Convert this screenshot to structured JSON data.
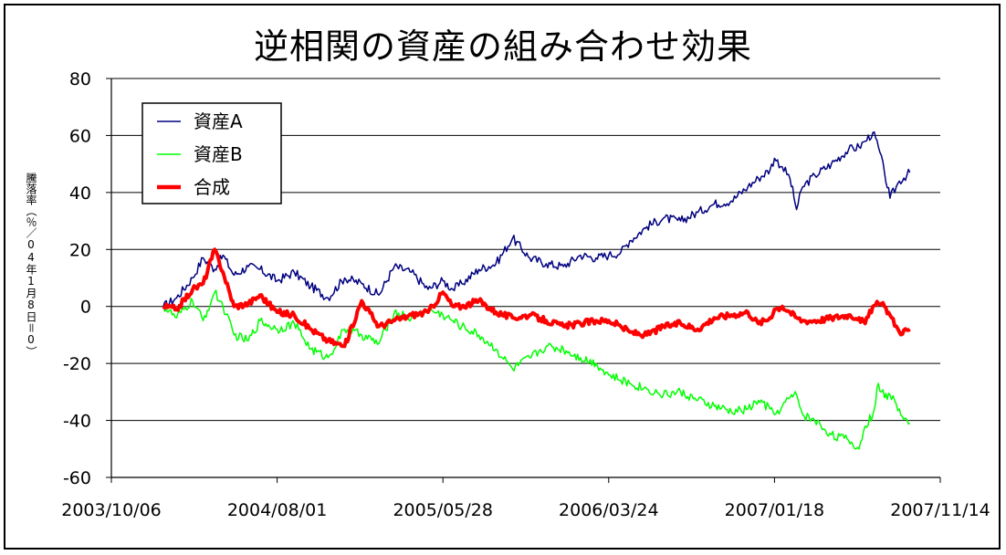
{
  "chart_data": {
    "type": "line",
    "title": "逆相関の資産の組み合わせ効果",
    "ylabel": "騰落率（％／04年1月8日＝0）",
    "ylim": [
      -60,
      80
    ],
    "yticks": [
      80,
      60,
      40,
      20,
      0,
      -20,
      -40,
      -60
    ],
    "xlim": [
      "2003-10-06",
      "2007-11-14"
    ],
    "xticks": [
      "2003/10/06",
      "2004/08/01",
      "2005/05/28",
      "2006/03/24",
      "2007/01/18",
      "2007/11/14"
    ],
    "grid": true,
    "legend_position": "top-left",
    "series": [
      {
        "name": "資産A",
        "color": "#000080",
        "width": 1.5,
        "dates": [
          "2004-01-08",
          "2004-02-01",
          "2004-03-01",
          "2004-03-20",
          "2004-04-10",
          "2004-04-25",
          "2004-05-15",
          "2004-06-10",
          "2004-07-01",
          "2004-08-01",
          "2004-09-01",
          "2004-10-01",
          "2004-11-01",
          "2004-12-01",
          "2005-01-01",
          "2005-02-01",
          "2005-03-01",
          "2005-04-01",
          "2005-05-01",
          "2005-05-28",
          "2005-06-15",
          "2005-07-01",
          "2005-08-01",
          "2005-09-01",
          "2005-10-01",
          "2005-11-01",
          "2005-12-01",
          "2006-01-01",
          "2006-02-01",
          "2006-03-01",
          "2006-03-24",
          "2006-04-15",
          "2006-05-01",
          "2006-06-01",
          "2006-07-01",
          "2006-08-01",
          "2006-09-01",
          "2006-10-01",
          "2006-11-01",
          "2006-12-01",
          "2006-12-20",
          "2007-01-10",
          "2007-01-18",
          "2007-02-01",
          "2007-02-15",
          "2007-02-27",
          "2007-03-10",
          "2007-04-01",
          "2007-05-01",
          "2007-06-01",
          "2007-06-20",
          "2007-07-01",
          "2007-07-15",
          "2007-07-25",
          "2007-08-05",
          "2007-08-15",
          "2007-09-01",
          "2007-09-20"
        ],
        "values": [
          0,
          3,
          10,
          17,
          13,
          18,
          11,
          14,
          13,
          9,
          12,
          7,
          3,
          10,
          8,
          4,
          14,
          12,
          6,
          9,
          6,
          8,
          13,
          15,
          24,
          17,
          15,
          14,
          18,
          17,
          18,
          19,
          23,
          28,
          31,
          30,
          33,
          36,
          37,
          42,
          45,
          48,
          52,
          49,
          45,
          34,
          42,
          46,
          50,
          55,
          56,
          58,
          61,
          56,
          47,
          38,
          44,
          47
        ]
      },
      {
        "name": "資産B",
        "color": "#00ff00",
        "width": 1.5,
        "dates": [
          "2004-01-08",
          "2004-02-01",
          "2004-03-01",
          "2004-03-20",
          "2004-04-10",
          "2004-04-25",
          "2004-05-15",
          "2004-06-10",
          "2004-07-01",
          "2004-08-01",
          "2004-09-01",
          "2004-10-01",
          "2004-11-01",
          "2004-12-01",
          "2005-01-01",
          "2005-02-01",
          "2005-03-01",
          "2005-04-01",
          "2005-05-01",
          "2005-05-28",
          "2005-06-15",
          "2005-07-01",
          "2005-08-01",
          "2005-09-01",
          "2005-10-01",
          "2005-11-01",
          "2005-12-01",
          "2006-01-01",
          "2006-02-01",
          "2006-03-01",
          "2006-03-24",
          "2006-04-15",
          "2006-05-01",
          "2006-06-01",
          "2006-07-01",
          "2006-08-01",
          "2006-09-01",
          "2006-10-01",
          "2006-11-01",
          "2006-12-01",
          "2006-12-20",
          "2007-01-10",
          "2007-01-18",
          "2007-02-01",
          "2007-02-15",
          "2007-02-27",
          "2007-03-10",
          "2007-04-01",
          "2007-05-01",
          "2007-06-01",
          "2007-06-20",
          "2007-07-01",
          "2007-07-15",
          "2007-07-25",
          "2007-08-05",
          "2007-08-15",
          "2007-09-01",
          "2007-09-20"
        ],
        "values": [
          0,
          -4,
          2,
          -5,
          5,
          0,
          -10,
          -12,
          -5,
          -8,
          -6,
          -15,
          -18,
          -8,
          -10,
          -13,
          -2,
          -4,
          -1,
          -3,
          -5,
          -7,
          -10,
          -15,
          -22,
          -18,
          -14,
          -15,
          -18,
          -20,
          -24,
          -26,
          -27,
          -29,
          -31,
          -30,
          -33,
          -35,
          -37,
          -36,
          -33,
          -36,
          -38,
          -35,
          -32,
          -31,
          -38,
          -40,
          -45,
          -47,
          -50,
          -42,
          -38,
          -27,
          -32,
          -31,
          -36,
          -41
        ]
      },
      {
        "name": "合成",
        "color": "#ff0000",
        "width": 4,
        "dates": [
          "2004-01-08",
          "2004-02-01",
          "2004-03-01",
          "2004-03-20",
          "2004-04-10",
          "2004-04-25",
          "2004-05-15",
          "2004-06-10",
          "2004-07-01",
          "2004-08-01",
          "2004-09-01",
          "2004-10-01",
          "2004-11-01",
          "2004-12-01",
          "2005-01-01",
          "2005-02-01",
          "2005-03-01",
          "2005-04-01",
          "2005-05-01",
          "2005-05-28",
          "2005-06-15",
          "2005-07-01",
          "2005-08-01",
          "2005-09-01",
          "2005-10-01",
          "2005-11-01",
          "2005-12-01",
          "2006-01-01",
          "2006-02-01",
          "2006-03-01",
          "2006-03-24",
          "2006-04-15",
          "2006-05-01",
          "2006-06-01",
          "2006-07-01",
          "2006-08-01",
          "2006-09-01",
          "2006-10-01",
          "2006-11-01",
          "2006-12-01",
          "2006-12-20",
          "2007-01-10",
          "2007-01-18",
          "2007-02-01",
          "2007-02-15",
          "2007-02-27",
          "2007-03-10",
          "2007-04-01",
          "2007-05-01",
          "2007-06-01",
          "2007-06-20",
          "2007-07-01",
          "2007-07-15",
          "2007-07-25",
          "2007-08-05",
          "2007-08-15",
          "2007-09-01",
          "2007-09-20"
        ],
        "values": [
          0,
          -1,
          6,
          8,
          20,
          12,
          0,
          1,
          4,
          -2,
          -3,
          -8,
          -12,
          -14,
          2,
          -7,
          -5,
          -3,
          -2,
          5,
          0,
          0,
          2,
          -2,
          -4,
          -3,
          -5,
          -7,
          -6,
          -5,
          -5,
          -7,
          -9,
          -10,
          -7,
          -6,
          -8,
          -4,
          -3,
          -2,
          -6,
          -4,
          -1,
          0,
          -2,
          -4,
          -5,
          -5,
          -4,
          -3,
          -4,
          -6,
          0,
          1,
          0,
          -3,
          -9,
          -8
        ]
      }
    ]
  }
}
